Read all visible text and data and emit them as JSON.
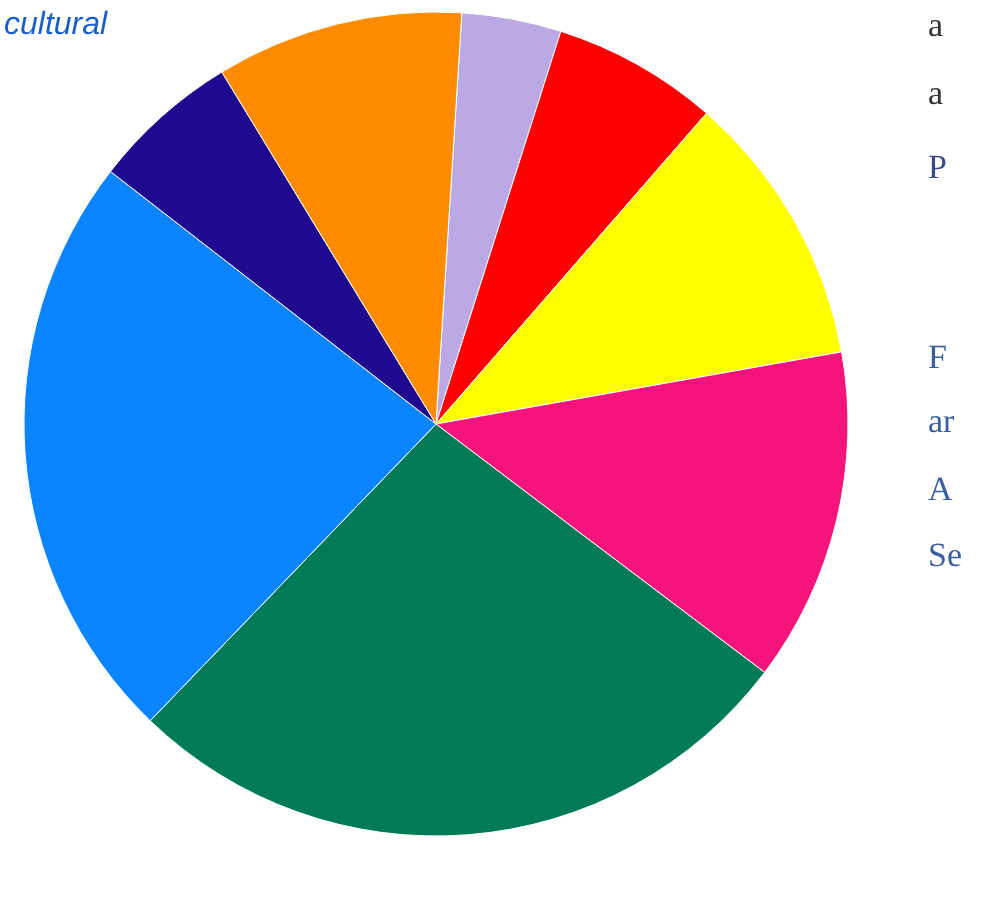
{
  "chart_data": {
    "type": "pie",
    "categories": [
      null,
      null,
      null,
      null,
      null,
      null,
      null,
      null
    ],
    "values": [
      3.9,
      6.5,
      10.8,
      13.1,
      26.9,
      23.3,
      5.8,
      9.7
    ],
    "colors": [
      "#bba9e6",
      "#ff0000",
      "#ffff00",
      "#f5147c",
      "#007a57",
      "#0a84ff",
      "#1f0a8f",
      "#ff8c00"
    ],
    "annotations": [
      "cultural",
      "a",
      "a",
      "P",
      "F",
      "ar",
      "A",
      "Se"
    ],
    "legend": false
  }
}
